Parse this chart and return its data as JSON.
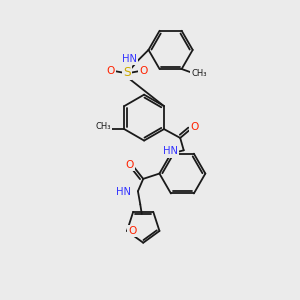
{
  "background_color": "#ebebeb",
  "colors": {
    "C": "#1a1a1a",
    "N": "#3333ff",
    "O": "#ff2200",
    "S": "#ccaa00",
    "bond": "#1a1a1a"
  },
  "layout": {
    "xlim": [
      0,
      10
    ],
    "ylim": [
      0,
      10
    ]
  }
}
